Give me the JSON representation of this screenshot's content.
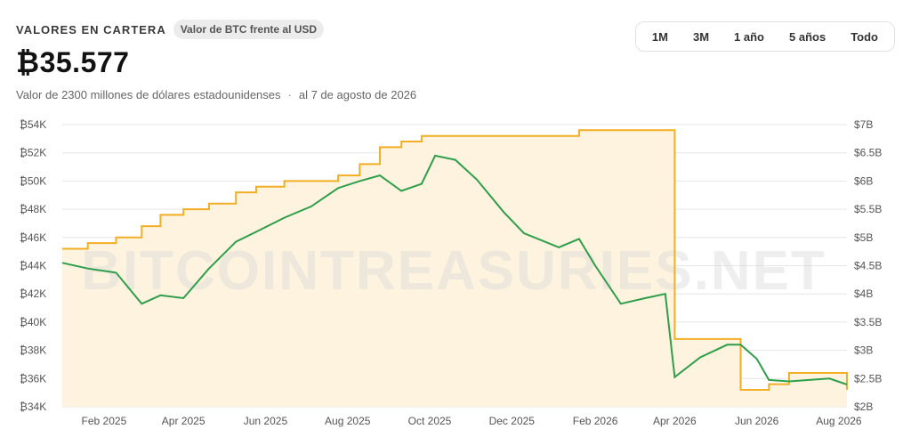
{
  "header": {
    "section_title": "VALORES EN CARTERA",
    "pill": "Valor de BTC frente al USD",
    "value": "₿35.577",
    "usd_value": "Valor de 2300 millones de dólares estadounidenses",
    "separator": "·",
    "date": "al 7 de agosto de 2026"
  },
  "range": {
    "options": [
      "1M",
      "3M",
      "1 año",
      "5 años",
      "Todo"
    ]
  },
  "watermark": "BITCOINTREASURIES.NET",
  "colors": {
    "btc_line": "#2e9e4a",
    "usd_line": "#f2ae24",
    "usd_fill": "#fdf3df",
    "grid": "#e6e6e6"
  },
  "chart_data": {
    "type": "line",
    "x": [
      "2025-01-01",
      "2025-01-20",
      "2025-02-10",
      "2025-03-01",
      "2025-03-15",
      "2025-04-01",
      "2025-04-20",
      "2025-05-10",
      "2025-05-25",
      "2025-06-15",
      "2025-07-05",
      "2025-07-25",
      "2025-08-10",
      "2025-08-25",
      "2025-09-10",
      "2025-09-25",
      "2025-10-05",
      "2025-10-20",
      "2025-11-05",
      "2025-11-25",
      "2025-12-10",
      "2026-01-05",
      "2026-01-20",
      "2026-02-01",
      "2026-02-20",
      "2026-03-10",
      "2026-03-25",
      "2026-04-01",
      "2026-04-20",
      "2026-05-10",
      "2026-05-20",
      "2026-06-01",
      "2026-06-10",
      "2026-06-25",
      "2026-07-10",
      "2026-07-25",
      "2026-08-07"
    ],
    "series": [
      {
        "axis": "left",
        "values": [
          44200,
          43800,
          43500,
          41300,
          41900,
          41700,
          43800,
          45700,
          46400,
          47400,
          48200,
          49500,
          50000,
          50400,
          49300,
          49800,
          51800,
          51500,
          50100,
          47800,
          46300,
          45300,
          45900,
          44000,
          41300,
          41700,
          42000,
          36100,
          37500,
          38400,
          38400,
          37400,
          35900,
          35800,
          35900,
          36000,
          35577
        ]
      },
      {
        "axis": "right",
        "values": [
          4.8,
          4.9,
          5.0,
          5.2,
          5.4,
          5.5,
          5.6,
          5.8,
          5.9,
          6.0,
          6.0,
          6.1,
          6.3,
          6.6,
          6.7,
          6.8,
          6.8,
          6.8,
          6.8,
          6.8,
          6.8,
          6.8,
          6.9,
          6.9,
          6.9,
          6.9,
          6.9,
          3.2,
          3.2,
          3.2,
          2.3,
          2.3,
          2.4,
          2.6,
          2.6,
          2.6,
          2.3
        ]
      }
    ],
    "y_left": {
      "ticks": [
        "₿34K",
        "₿36K",
        "₿38K",
        "₿40K",
        "₿42K",
        "₿44K",
        "₿46K",
        "₿48K",
        "₿50K",
        "₿52K",
        "₿54K"
      ],
      "range": [
        34000,
        54000
      ]
    },
    "y_right": {
      "ticks": [
        "$2B",
        "$2.5B",
        "$3B",
        "$3.5B",
        "$4B",
        "$4.5B",
        "$5B",
        "$5.5B",
        "$6B",
        "$6.5B",
        "$7B"
      ],
      "range": [
        2,
        7
      ]
    },
    "x_ticks": [
      {
        "label": "Feb 2025",
        "date": "2025-02-01"
      },
      {
        "label": "Apr 2025",
        "date": "2025-04-01"
      },
      {
        "label": "Jun 2025",
        "date": "2025-06-01"
      },
      {
        "label": "Aug 2025",
        "date": "2025-08-01"
      },
      {
        "label": "Oct 2025",
        "date": "2025-10-01"
      },
      {
        "label": "Dec 2025",
        "date": "2025-12-01"
      },
      {
        "label": "Feb 2026",
        "date": "2026-02-01"
      },
      {
        "label": "Apr 2026",
        "date": "2026-04-01"
      },
      {
        "label": "Jun 2026",
        "date": "2026-06-01"
      },
      {
        "label": "Aug 2026",
        "date": "2026-08-01"
      }
    ],
    "grid": true
  }
}
